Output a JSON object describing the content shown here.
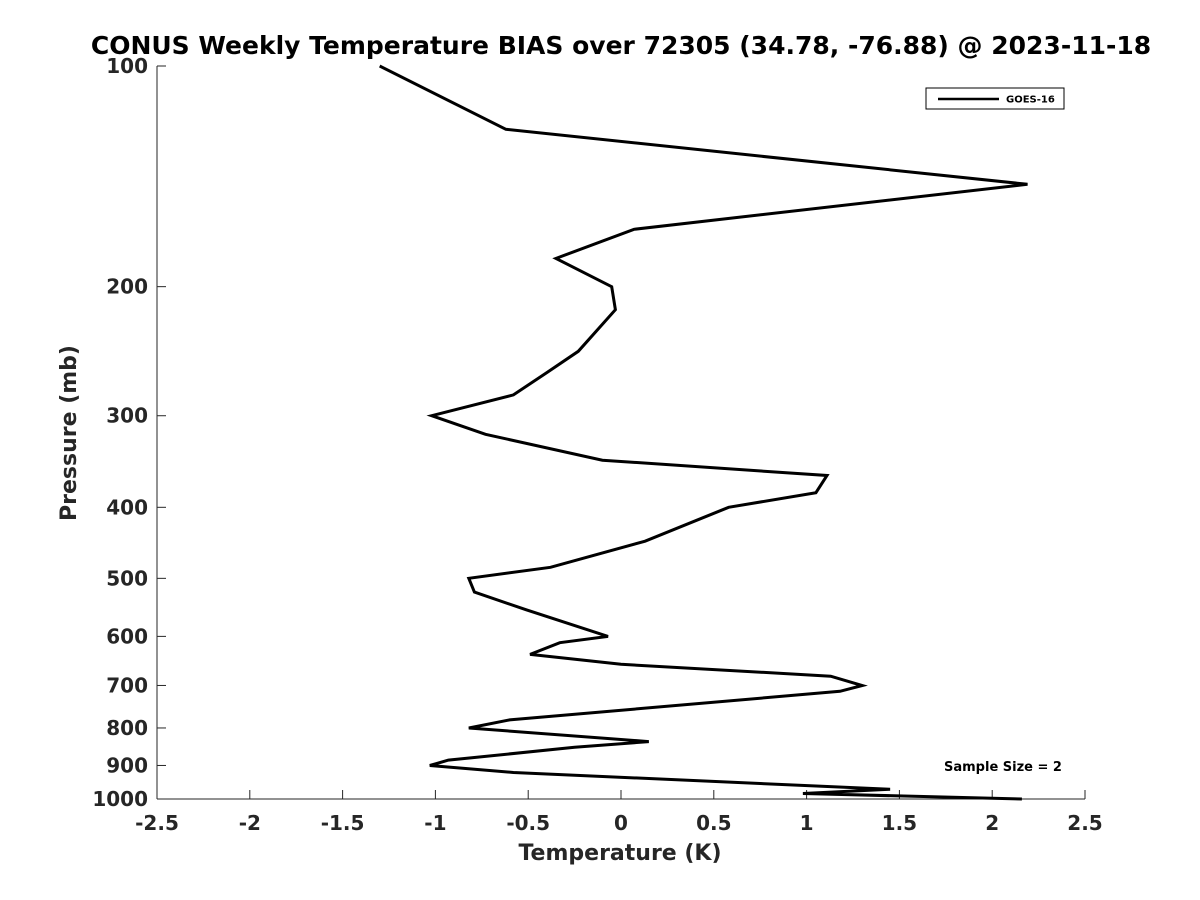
{
  "chart_data": {
    "type": "line",
    "title": "CONUS Weekly Temperature BIAS over 72305 (34.78, -76.88) @ 2023-11-18",
    "xlabel": "Temperature (K)",
    "ylabel": "Pressure (mb)",
    "xlim": [
      -2.5,
      2.5
    ],
    "ylim": [
      100,
      1000
    ],
    "y_scale": "log",
    "y_reversed": true,
    "x_ticks": [
      -2.5,
      -2,
      -1.5,
      -1,
      -0.5,
      0,
      0.5,
      1,
      1.5,
      2,
      2.5
    ],
    "x_tick_labels": [
      "-2.5",
      "-2",
      "-1.5",
      "-1",
      "-0.5",
      "0",
      "0.5",
      "1",
      "1.5",
      "2",
      "2.5"
    ],
    "y_ticks": [
      100,
      200,
      300,
      400,
      500,
      600,
      700,
      800,
      900,
      1000
    ],
    "y_tick_labels": [
      "100",
      "200",
      "300",
      "400",
      "500",
      "600",
      "700",
      "800",
      "900",
      "1000"
    ],
    "grid": false,
    "legend_position": "top-right",
    "annotation": "Sample Size = 2",
    "series": [
      {
        "name": "GOES-16",
        "color": "#000000",
        "points": [
          {
            "x": -1.3,
            "p": 100
          },
          {
            "x": -0.62,
            "p": 122
          },
          {
            "x": 2.19,
            "p": 145
          },
          {
            "x": 0.07,
            "p": 167
          },
          {
            "x": -0.35,
            "p": 183
          },
          {
            "x": -0.05,
            "p": 200
          },
          {
            "x": -0.03,
            "p": 215
          },
          {
            "x": -0.23,
            "p": 245
          },
          {
            "x": -0.4,
            "p": 262
          },
          {
            "x": -0.58,
            "p": 281
          },
          {
            "x": -1.02,
            "p": 300
          },
          {
            "x": -0.73,
            "p": 318
          },
          {
            "x": -0.1,
            "p": 345
          },
          {
            "x": 1.11,
            "p": 362
          },
          {
            "x": 1.05,
            "p": 382
          },
          {
            "x": 0.58,
            "p": 400
          },
          {
            "x": 0.13,
            "p": 445
          },
          {
            "x": -0.38,
            "p": 483
          },
          {
            "x": -0.82,
            "p": 500
          },
          {
            "x": -0.79,
            "p": 522
          },
          {
            "x": -0.51,
            "p": 552
          },
          {
            "x": -0.07,
            "p": 600
          },
          {
            "x": -0.33,
            "p": 612
          },
          {
            "x": -0.49,
            "p": 635
          },
          {
            "x": 0.0,
            "p": 655
          },
          {
            "x": 1.13,
            "p": 680
          },
          {
            "x": 1.3,
            "p": 700
          },
          {
            "x": 1.18,
            "p": 713
          },
          {
            "x": -0.6,
            "p": 780
          },
          {
            "x": -0.82,
            "p": 800
          },
          {
            "x": 0.15,
            "p": 835
          },
          {
            "x": -0.25,
            "p": 850
          },
          {
            "x": -0.93,
            "p": 885
          },
          {
            "x": -1.03,
            "p": 900
          },
          {
            "x": -0.58,
            "p": 920
          },
          {
            "x": 1.45,
            "p": 970
          },
          {
            "x": 0.98,
            "p": 983
          },
          {
            "x": 2.16,
            "p": 1000
          }
        ]
      }
    ]
  }
}
